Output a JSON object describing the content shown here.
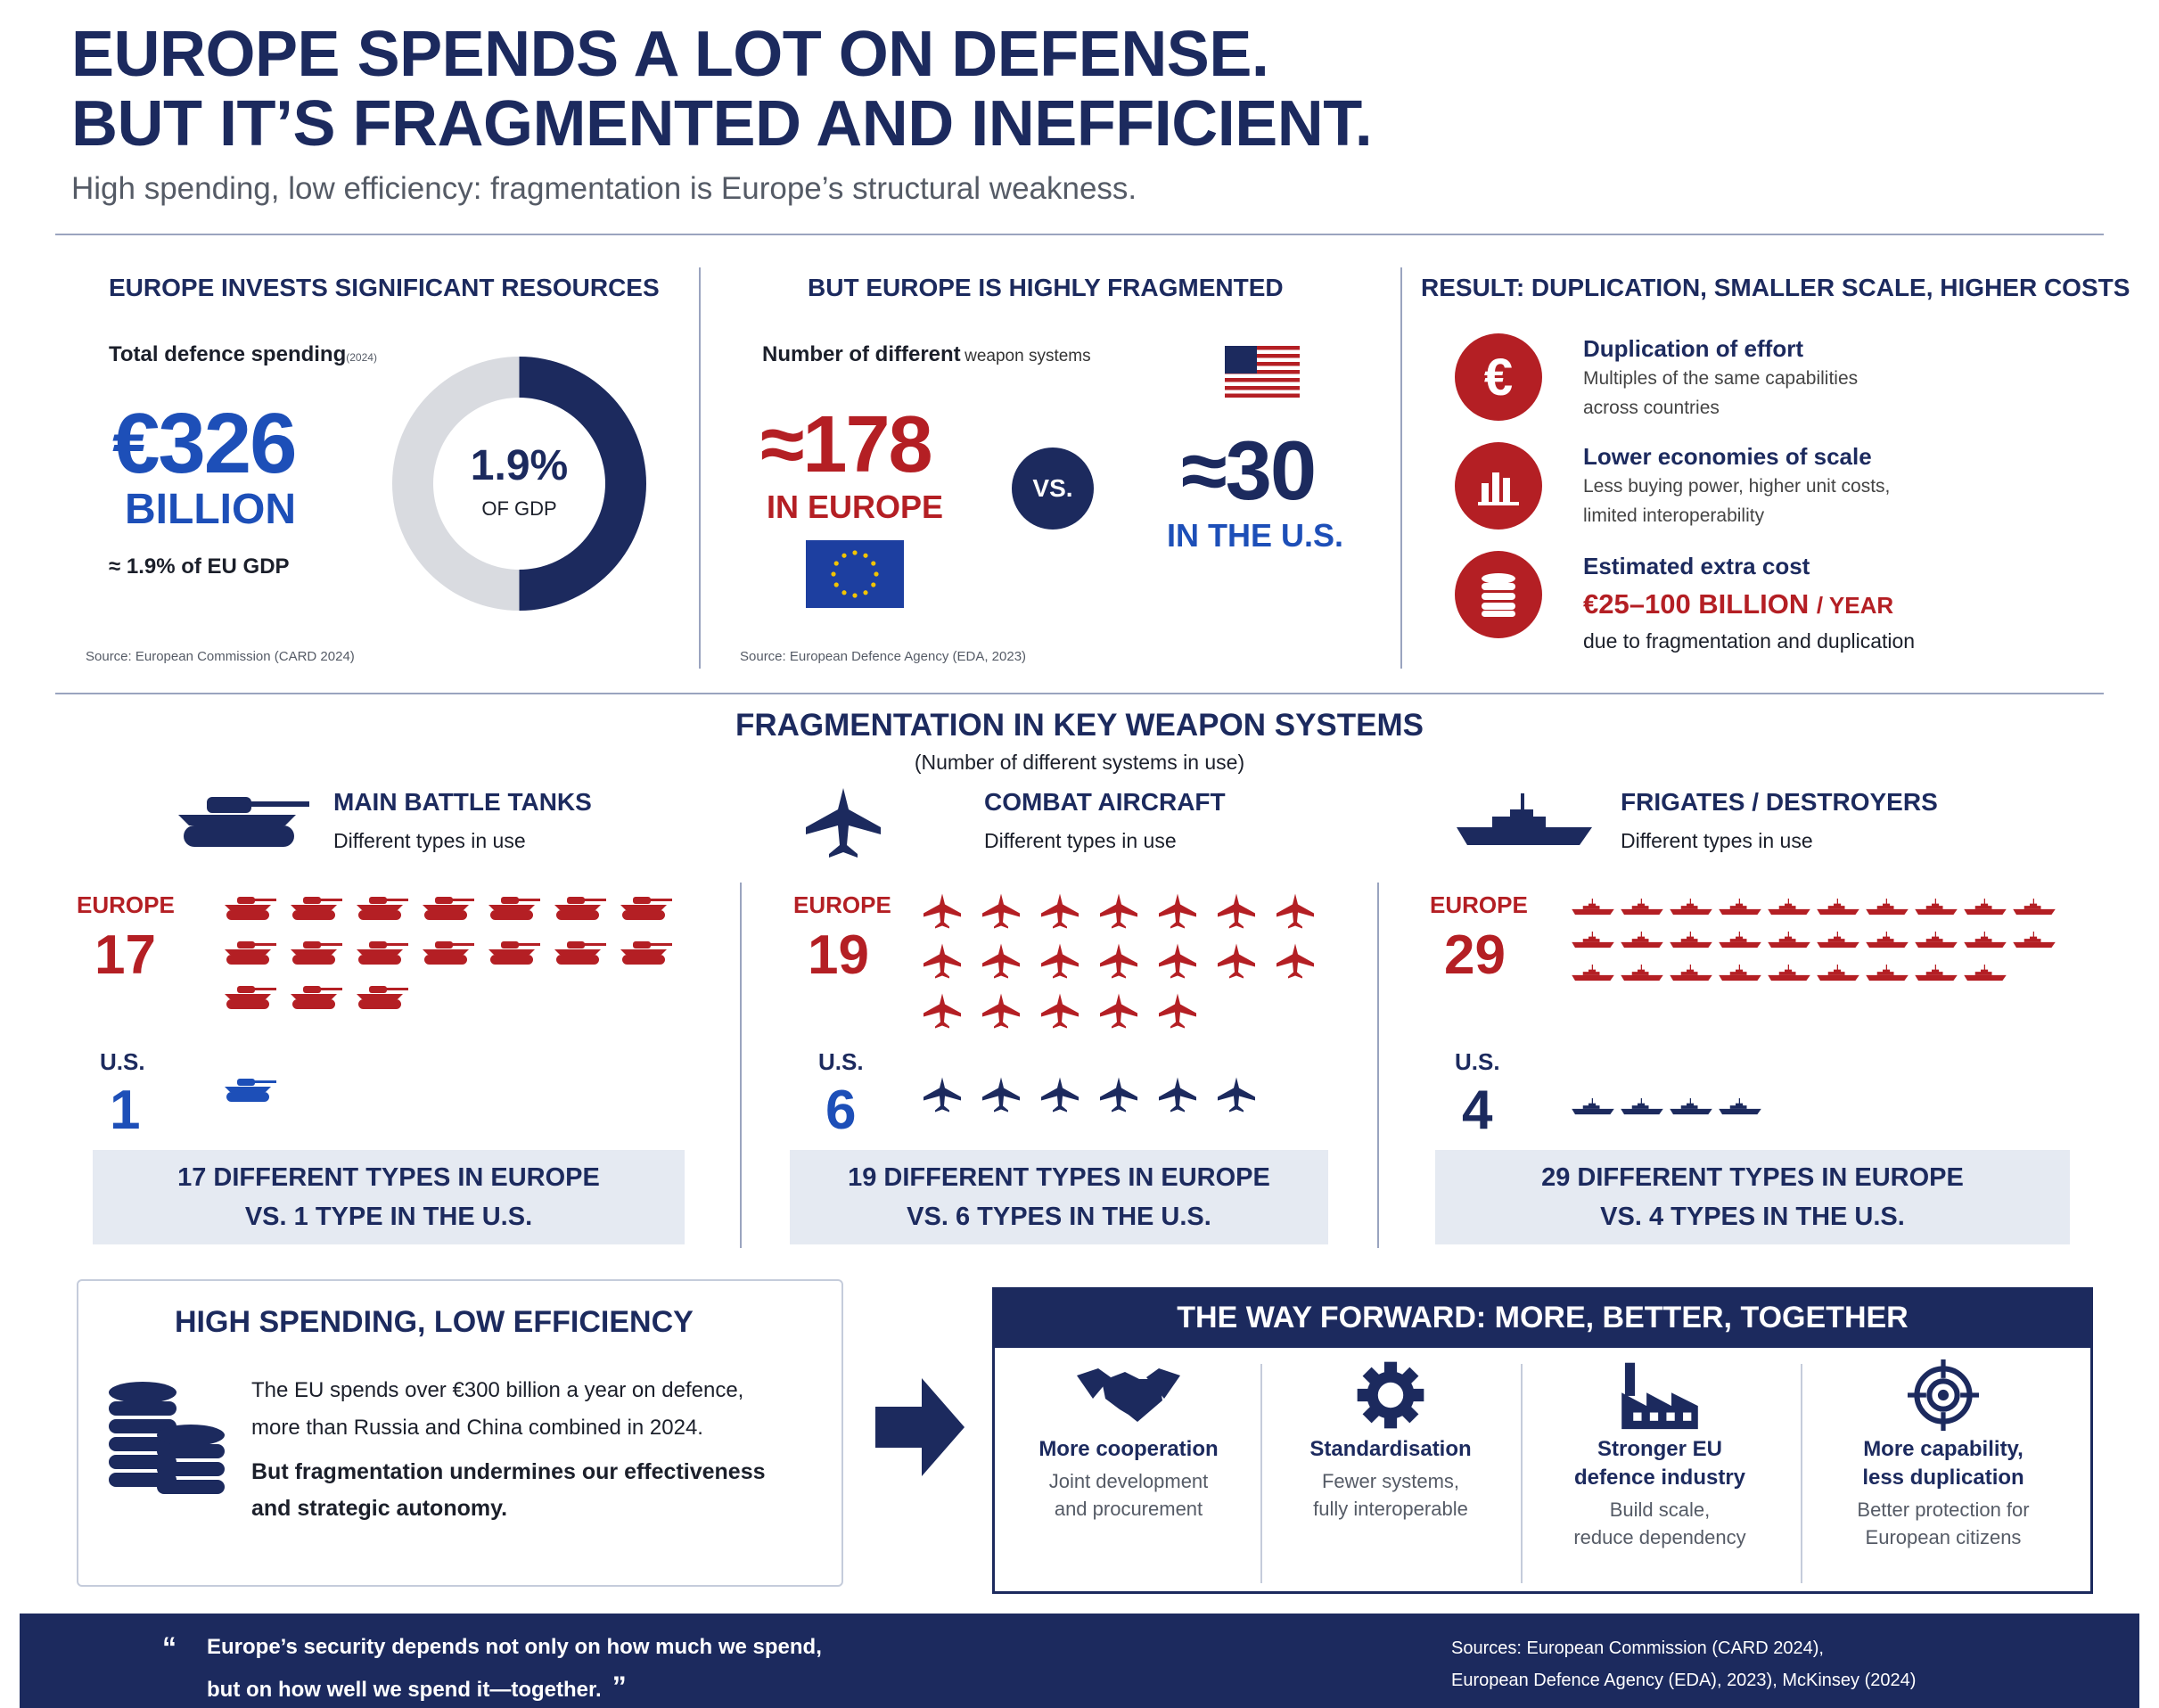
{
  "header": {
    "title_line1": "EUROPE SPENDS A LOT ON DEFENSE.",
    "title_line2": "BUT IT’S FRAGMENTED AND INEFFICIENT.",
    "subtitle": "High spending, low efficiency: fragmentation is Europe’s structural weakness."
  },
  "resources": {
    "heading": "EUROPE INVESTS SIGNIFICANT RESOURCES",
    "label": "Total defence spending",
    "label_year": "(2024)",
    "amount": "€326",
    "unit": "BILLION",
    "note": "≈ 1.9% of EU GDP",
    "donut_value": "1.9%",
    "donut_label": "OF GDP",
    "source": "Source: European Commission (CARD 2024)"
  },
  "fragmented": {
    "heading": "BUT EUROPE IS HIGHLY FRAGMENTED",
    "label_bold": "Number of different",
    "label_rest": "weapon systems",
    "europe_value": "≈178",
    "europe_label": "IN EUROPE",
    "vs": "VS.",
    "us_value": "≈30",
    "us_label": "IN THE U.S.",
    "source": "Source: European Defence Agency (EDA, 2023)"
  },
  "result": {
    "heading": "RESULT: DUPLICATION, SMALLER SCALE, HIGHER COSTS",
    "items": [
      {
        "icon": "euro-icon",
        "title": "Duplication of effort",
        "line1": "Multiples of the same capabilities",
        "line2": "across countries"
      },
      {
        "icon": "bar-chart-icon",
        "title": "Lower economies of scale",
        "line1": "Less buying power, higher unit costs,",
        "line2": "limited interoperability"
      },
      {
        "icon": "coins-icon",
        "title": "Estimated extra cost",
        "value": "€25–100 BILLION",
        "per": "/ YEAR",
        "line2": "due to fragmentation and duplication"
      }
    ]
  },
  "systems": {
    "heading": "FRAGMENTATION IN KEY WEAPON SYSTEMS",
    "subheading": "(Number of different systems in use)",
    "europe_label": "EUROPE",
    "us_label": "U.S.",
    "groups": [
      {
        "title": "MAIN BATTLE TANKS",
        "sub": "Different types in use",
        "europe": "17",
        "us": "1",
        "summary1": "17 DIFFERENT TYPES IN EUROPE",
        "summary2": "VS. 1 TYPE IN THE U.S."
      },
      {
        "title": "COMBAT AIRCRAFT",
        "sub": "Different types in use",
        "europe": "19",
        "us": "6",
        "summary1": "19 DIFFERENT TYPES IN EUROPE",
        "summary2": "VS. 6 TYPES IN THE U.S."
      },
      {
        "title": "FRIGATES / DESTROYERS",
        "sub": "Different types in use",
        "europe": "29",
        "us": "4",
        "summary1": "29 DIFFERENT TYPES IN EUROPE",
        "summary2": "VS. 4 TYPES IN THE U.S."
      }
    ]
  },
  "efficiency": {
    "heading": "HIGH SPENDING, LOW EFFICIENCY",
    "line1": "The EU spends over €300 billion a year on defence,",
    "line2": "more than Russia and China combined in 2024.",
    "line3": "But fragmentation undermines our effectiveness",
    "line4": "and strategic autonomy."
  },
  "way_forward": {
    "heading": "THE WAY FORWARD: MORE, BETTER, TOGETHER",
    "items": [
      {
        "icon": "handshake-icon",
        "title1": "More cooperation",
        "title2": "",
        "sub1": "Joint development",
        "sub2": "and procurement"
      },
      {
        "icon": "gear-icon",
        "title1": "Standardisation",
        "title2": "",
        "sub1": "Fewer systems,",
        "sub2": "fully interoperable"
      },
      {
        "icon": "factory-icon",
        "title1": "Stronger EU",
        "title2": "defence industry",
        "sub1": "Build scale,",
        "sub2": "reduce dependency"
      },
      {
        "icon": "target-icon",
        "title1": "More capability,",
        "title2": "less duplication",
        "sub1": "Better protection for",
        "sub2": "European citizens"
      }
    ]
  },
  "footer": {
    "quote_line1": "Europe’s security depends not only on how much we spend,",
    "quote_line2": "but on how well we spend it—together.",
    "sources_line1": "Sources: European Commission (CARD 2024),",
    "sources_line2": "European Defence Agency (EDA), 2023), McKinsey (2024)"
  },
  "colors": {
    "navy": "#1c2a5e",
    "red": "#b41f24",
    "blue": "#1d4fb8",
    "light_panel": "#e5eaf2"
  }
}
